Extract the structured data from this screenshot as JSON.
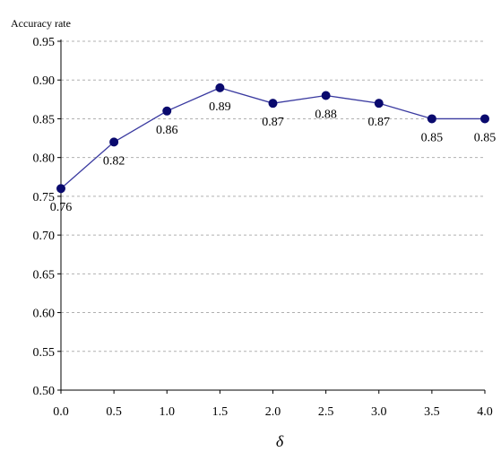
{
  "chart_data": {
    "type": "line",
    "x": [
      0.0,
      0.5,
      1.0,
      1.5,
      2.0,
      2.5,
      3.0,
      3.5,
      4.0
    ],
    "x_tick_labels": [
      "0.0",
      "0.5",
      "1.0",
      "1.5",
      "2.0",
      "2.5",
      "3.0",
      "3.5",
      "4.0"
    ],
    "series": [
      {
        "values": [
          0.76,
          0.82,
          0.86,
          0.89,
          0.87,
          0.88,
          0.87,
          0.85,
          0.85
        ],
        "data_labels": [
          "0.76",
          "0.82",
          "0.86",
          "0.89",
          "0.87",
          "0.88",
          "0.87",
          "0.85",
          "0.85"
        ]
      }
    ],
    "ylabel": "Accuracy rate",
    "xlabel": "δ",
    "xlim": [
      0.0,
      4.0
    ],
    "ylim": [
      0.5,
      0.95
    ],
    "y_ticks": [
      0.5,
      0.55,
      0.6,
      0.65,
      0.7,
      0.75,
      0.8,
      0.85,
      0.9,
      0.95
    ],
    "y_tick_labels": [
      "0.50",
      "0.55",
      "0.60",
      "0.65",
      "0.70",
      "0.75",
      "0.80",
      "0.85",
      "0.90",
      "0.95"
    ],
    "grid": "horizontal-dashed",
    "legend": "none",
    "colors": {
      "line": "#3a3aa0",
      "marker": "#0a0a6e"
    }
  }
}
